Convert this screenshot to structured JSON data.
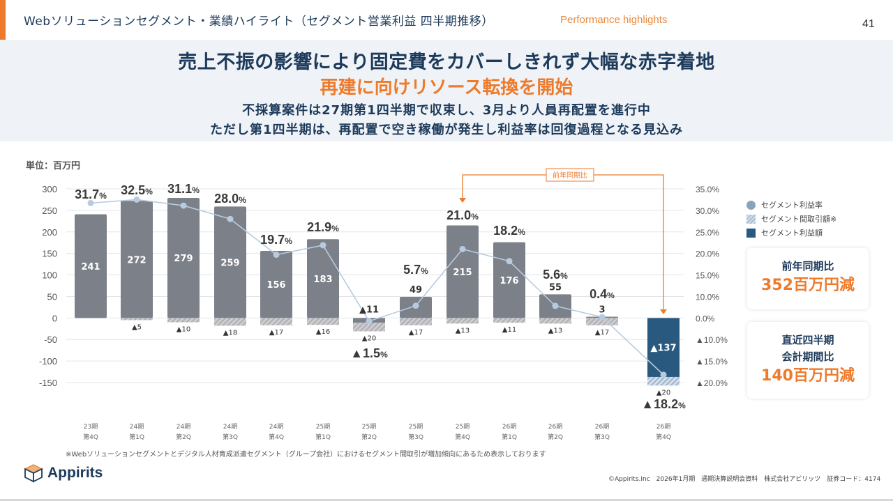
{
  "header": {
    "title": "Webソリューションセグメント・業績ハイライト（セグメント営業利益 四半期推移）",
    "subtitle": "Performance highlights",
    "page_number": "41",
    "accent_color": "#ee7a2b"
  },
  "hero": {
    "line1": "売上不振の影響により固定費をカバーしきれず大幅な赤字着地",
    "line2": "再建に向けリソース転換を開始",
    "line3": "不採算案件は27期第1四半期で収束し、3月より人員再配置を進行中",
    "line4": "ただし第1四半期は、再配置で空き稼働が発生し利益率は回復過程となる見込み"
  },
  "unit_label": "単位：百万円",
  "legend": {
    "rate": "セグメント利益率",
    "intersegment": "セグメント間取引額※",
    "profit": "セグメント利益額"
  },
  "kpis": [
    {
      "label_lines": [
        "前年同期比"
      ],
      "value": "352百万円減"
    },
    {
      "label_lines": [
        "直近四半期",
        "会計期間比"
      ],
      "value": "140百万円減"
    }
  ],
  "footnote": "※Webソリューションセグメントとデジタル人材育成派遣セグメント（グループ会社）におけるセグメント間取引が増加傾向にあるため表示しております",
  "logo_text": "Appirits",
  "copyright": "©Appirits.Inc　2026年1月期　通期決算説明会資料　株式会社アピリッツ　証券コード：4174",
  "chart_data": {
    "type": "bar",
    "title": "",
    "ylabel": "単位：百万円",
    "ylim": [
      -150,
      300
    ],
    "yticks": [
      300,
      250,
      200,
      150,
      100,
      50,
      0,
      -50,
      -100,
      -150
    ],
    "y2ticks": [
      {
        "label": "35.0%",
        "value": 35
      },
      {
        "label": "30.0%",
        "value": 30
      },
      {
        "label": "25.0%",
        "value": 25
      },
      {
        "label": "20.0%",
        "value": 20
      },
      {
        "label": "15.0%",
        "value": 15
      },
      {
        "label": "10.0%",
        "value": 10
      },
      {
        "label": "0.0%",
        "value": 0
      },
      {
        "label": "▲10.0%",
        "value": -10
      },
      {
        "label": "▲15.0%",
        "value": -15
      },
      {
        "label": "▲20.0%",
        "value": -20
      }
    ],
    "grid": true,
    "legend_position": "right",
    "categories": [
      [
        "23期",
        "第4Q"
      ],
      [
        "24期",
        "第1Q"
      ],
      [
        "24期",
        "第2Q"
      ],
      [
        "24期",
        "第3Q"
      ],
      [
        "24期",
        "第4Q"
      ],
      [
        "25期",
        "第1Q"
      ],
      [
        "25期",
        "第2Q"
      ],
      [
        "25期",
        "第3Q"
      ],
      [
        "25期",
        "第4Q"
      ],
      [
        "26期",
        "第1Q"
      ],
      [
        "26期",
        "第2Q"
      ],
      [
        "26期",
        "第3Q"
      ],
      [
        "26期",
        "第4Q"
      ]
    ],
    "series": [
      {
        "name": "セグメント利益額",
        "values": [
          241,
          272,
          279,
          259,
          156,
          183,
          -11,
          49,
          215,
          176,
          55,
          3,
          -137
        ],
        "labels": [
          "241",
          "272",
          "279",
          "259",
          "156",
          "183",
          "▲11",
          "49",
          "215",
          "176",
          "55",
          "3",
          "▲137"
        ]
      },
      {
        "name": "セグメント間取引額",
        "values": [
          0,
          -5,
          -10,
          -18,
          -17,
          -16,
          -20,
          -17,
          -13,
          -11,
          -13,
          -17,
          -20
        ],
        "labels": [
          "",
          "▲5",
          "▲10",
          "▲18",
          "▲17",
          "▲16",
          "▲20",
          "▲17",
          "▲13",
          "▲11",
          "▲13",
          "▲17",
          "▲20"
        ]
      },
      {
        "name": "セグメント利益率",
        "axis": "right",
        "values": [
          31.7,
          32.5,
          31.1,
          28.0,
          19.7,
          21.9,
          -1.5,
          5.7,
          21.0,
          18.2,
          5.6,
          0.4,
          -18.2
        ],
        "labels": [
          "31.7",
          "32.5",
          "31.1",
          "28.0",
          "19.7",
          "21.9",
          "▲1.5",
          "5.7",
          "21.0",
          "18.2",
          "5.6",
          "0.4",
          "▲18.2"
        ]
      }
    ],
    "annotation": {
      "text": "前年同期比",
      "from_category": 8,
      "to_category": 12
    },
    "colors": {
      "bar": "#7c8089",
      "bar_latest": "#2a5980",
      "hatch": "#b8b8bc",
      "hatch_latest": "#a9bdd3",
      "line": "#b7cbe0",
      "annotation": "#ee7a2b"
    }
  }
}
